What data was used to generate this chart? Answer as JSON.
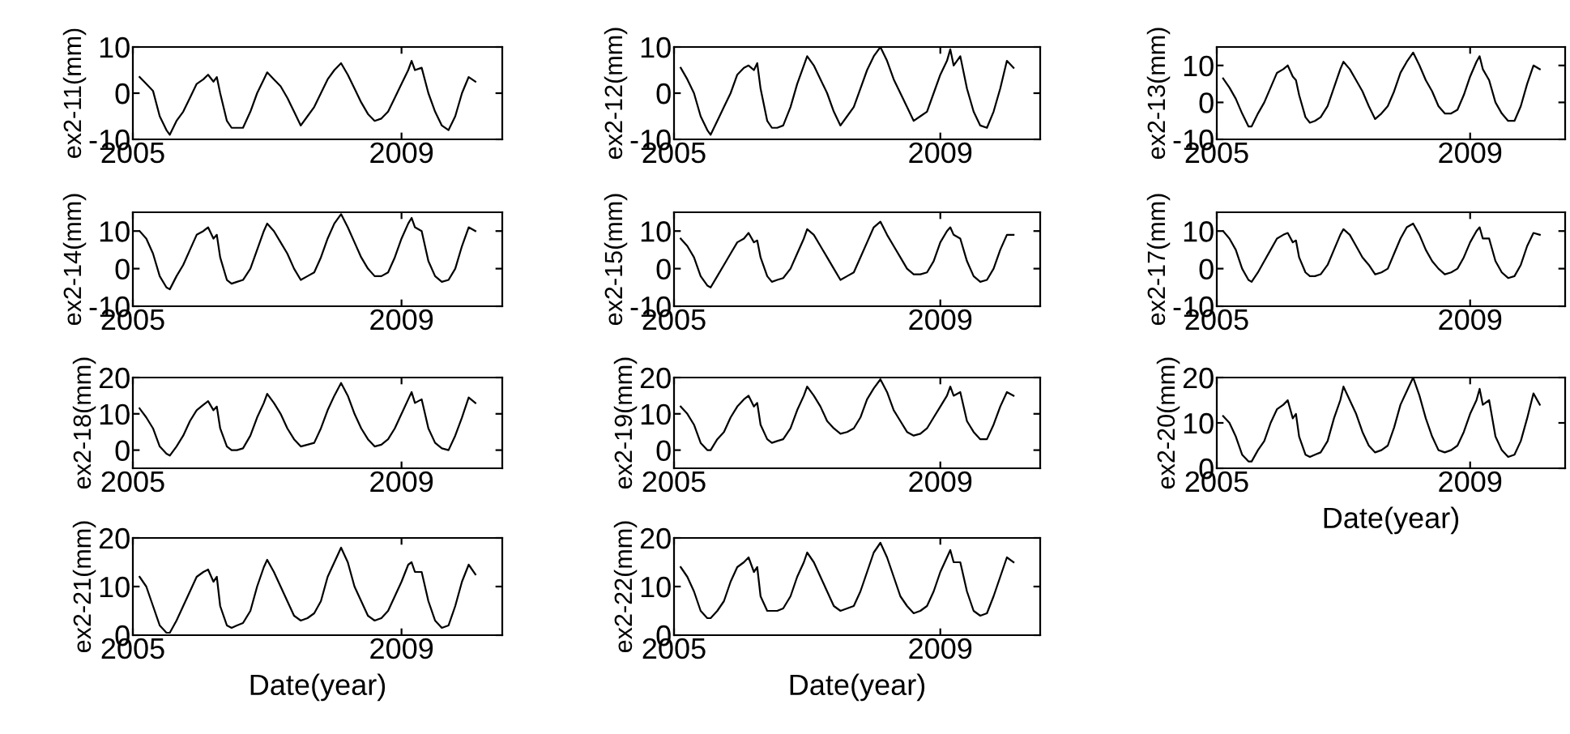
{
  "chart_data": [
    {
      "type": "line",
      "ylabel": "ex2-11(mm)",
      "color": "#000000",
      "xlim": [
        2005,
        2010.5
      ],
      "xticks": [
        2005,
        2009
      ],
      "ylim": [
        -10,
        10
      ],
      "yticks": [
        -10,
        0,
        10
      ],
      "x": [
        2005.1,
        2005.2,
        2005.3,
        2005.4,
        2005.5,
        2005.55,
        2005.65,
        2005.75,
        2005.85,
        2005.95,
        2006.05,
        2006.12,
        2006.2,
        2006.25,
        2006.3,
        2006.4,
        2006.47,
        2006.55,
        2006.64,
        2006.75,
        2006.85,
        2006.95,
        2007.0,
        2007.1,
        2007.2,
        2007.3,
        2007.4,
        2007.5,
        2007.6,
        2007.7,
        2007.8,
        2007.9,
        2008.0,
        2008.1,
        2008.2,
        2008.3,
        2008.4,
        2008.5,
        2008.6,
        2008.7,
        2008.8,
        2008.9,
        2009.0,
        2009.1,
        2009.15,
        2009.2,
        2009.3,
        2009.4,
        2009.5,
        2009.6,
        2009.7,
        2009.8,
        2009.9,
        2010.0,
        2010.1
      ],
      "values": [
        3.5,
        2,
        0.5,
        -5,
        -8,
        -9,
        -6,
        -4,
        -1,
        2,
        3,
        4,
        2.5,
        3.5,
        0,
        -6,
        -7.5,
        -7.5,
        -7.5,
        -4,
        0,
        3,
        4.5,
        3,
        1.5,
        -1,
        -4,
        -7,
        -5,
        -3,
        0,
        3,
        5,
        6.5,
        4,
        1,
        -2,
        -4.5,
        -6,
        -5.5,
        -4,
        -1,
        2,
        5,
        7,
        5,
        5.5,
        0,
        -4,
        -7,
        -8,
        -5,
        0,
        3.5,
        2.5
      ]
    },
    {
      "type": "line",
      "ylabel": "ex2-12(mm)",
      "color": "#000000",
      "xlim": [
        2005,
        2010.5
      ],
      "xticks": [
        2005,
        2009
      ],
      "ylim": [
        -10,
        10
      ],
      "yticks": [
        -10,
        0,
        10
      ],
      "x": [
        2005.1,
        2005.2,
        2005.3,
        2005.4,
        2005.5,
        2005.55,
        2005.65,
        2005.75,
        2005.85,
        2005.95,
        2006.05,
        2006.12,
        2006.2,
        2006.25,
        2006.3,
        2006.4,
        2006.47,
        2006.55,
        2006.64,
        2006.75,
        2006.85,
        2006.95,
        2007.0,
        2007.1,
        2007.2,
        2007.3,
        2007.4,
        2007.5,
        2007.6,
        2007.7,
        2007.8,
        2007.9,
        2008.0,
        2008.1,
        2008.2,
        2008.3,
        2008.4,
        2008.5,
        2008.6,
        2008.7,
        2008.8,
        2008.9,
        2009.0,
        2009.1,
        2009.15,
        2009.2,
        2009.3,
        2009.4,
        2009.5,
        2009.6,
        2009.7,
        2009.8,
        2009.9,
        2010.0,
        2010.1
      ],
      "values": [
        5.5,
        3,
        0,
        -5,
        -8,
        -9,
        -6,
        -3,
        0,
        4,
        5.5,
        6,
        5,
        6.5,
        1,
        -6,
        -7.5,
        -7.5,
        -7,
        -3,
        2,
        6,
        8,
        6,
        3,
        0,
        -4,
        -7,
        -5,
        -3,
        1,
        5,
        8,
        10,
        7,
        3,
        0,
        -3,
        -6,
        -5,
        -4,
        0,
        4,
        7,
        9.5,
        6,
        8,
        1,
        -4,
        -7,
        -7.5,
        -4,
        1,
        7,
        5.5
      ]
    },
    {
      "type": "line",
      "ylabel": "ex2-13(mm)",
      "color": "#000000",
      "xlim": [
        2005,
        2010.5
      ],
      "xticks": [
        2005,
        2009
      ],
      "ylim": [
        -10,
        15
      ],
      "yticks": [
        -10,
        0,
        10
      ],
      "x": [
        2005.1,
        2005.2,
        2005.3,
        2005.4,
        2005.5,
        2005.55,
        2005.65,
        2005.75,
        2005.85,
        2005.95,
        2006.05,
        2006.12,
        2006.2,
        2006.25,
        2006.3,
        2006.4,
        2006.47,
        2006.55,
        2006.64,
        2006.75,
        2006.85,
        2006.95,
        2007.0,
        2007.1,
        2007.2,
        2007.3,
        2007.4,
        2007.5,
        2007.6,
        2007.7,
        2007.8,
        2007.9,
        2008.0,
        2008.1,
        2008.2,
        2008.3,
        2008.4,
        2008.5,
        2008.6,
        2008.7,
        2008.8,
        2008.9,
        2009.0,
        2009.1,
        2009.15,
        2009.2,
        2009.3,
        2009.4,
        2009.5,
        2009.6,
        2009.7,
        2009.8,
        2009.9,
        2010.0,
        2010.1
      ],
      "values": [
        6.5,
        4,
        1,
        -3,
        -6.5,
        -6.5,
        -3,
        0,
        4,
        8,
        9,
        10,
        7,
        6,
        2,
        -4,
        -5.5,
        -5,
        -4,
        -1,
        4,
        9,
        11,
        9,
        6,
        3,
        -1,
        -4.5,
        -3,
        -1,
        3,
        8,
        11,
        13.5,
        10,
        6,
        3,
        -1,
        -3,
        -3,
        -2,
        2,
        7,
        11,
        12.5,
        9,
        6,
        0,
        -3,
        -5,
        -5,
        -1,
        5,
        10,
        9
      ]
    },
    {
      "type": "line",
      "ylabel": "ex2-14(mm)",
      "color": "#000000",
      "xlim": [
        2005,
        2010.5
      ],
      "xticks": [
        2005,
        2009
      ],
      "ylim": [
        -10,
        15
      ],
      "yticks": [
        -10,
        0,
        10
      ],
      "x": [
        2005.1,
        2005.2,
        2005.3,
        2005.4,
        2005.5,
        2005.55,
        2005.65,
        2005.75,
        2005.85,
        2005.95,
        2006.05,
        2006.12,
        2006.2,
        2006.25,
        2006.3,
        2006.4,
        2006.47,
        2006.55,
        2006.64,
        2006.75,
        2006.85,
        2006.95,
        2007.0,
        2007.1,
        2007.2,
        2007.3,
        2007.4,
        2007.5,
        2007.6,
        2007.7,
        2007.8,
        2007.9,
        2008.0,
        2008.1,
        2008.2,
        2008.3,
        2008.4,
        2008.5,
        2008.6,
        2008.7,
        2008.8,
        2008.9,
        2009.0,
        2009.1,
        2009.15,
        2009.2,
        2009.3,
        2009.4,
        2009.5,
        2009.6,
        2009.7,
        2009.8,
        2009.9,
        2010.0,
        2010.1
      ],
      "values": [
        10,
        8,
        4,
        -2,
        -5,
        -5.5,
        -2,
        1,
        5,
        9,
        10,
        11,
        8,
        9,
        3,
        -3,
        -4,
        -3.5,
        -3,
        0,
        5,
        10,
        12,
        10,
        7,
        4,
        0,
        -3,
        -2,
        -1,
        3,
        8,
        12,
        14.5,
        11,
        7,
        3,
        0,
        -2,
        -2,
        -1,
        3,
        8,
        12,
        13.5,
        11,
        10,
        2,
        -2,
        -3.5,
        -3,
        0,
        6,
        11,
        10
      ]
    },
    {
      "type": "line",
      "ylabel": "ex2-15(mm)",
      "color": "#000000",
      "xlim": [
        2005,
        2010.5
      ],
      "xticks": [
        2005,
        2009
      ],
      "ylim": [
        -10,
        15
      ],
      "yticks": [
        -10,
        0,
        10
      ],
      "x": [
        2005.1,
        2005.2,
        2005.3,
        2005.4,
        2005.5,
        2005.55,
        2005.65,
        2005.75,
        2005.85,
        2005.95,
        2006.05,
        2006.12,
        2006.2,
        2006.25,
        2006.3,
        2006.4,
        2006.47,
        2006.55,
        2006.64,
        2006.75,
        2006.85,
        2006.95,
        2007.0,
        2007.1,
        2007.2,
        2007.3,
        2007.4,
        2007.5,
        2007.6,
        2007.7,
        2007.8,
        2007.9,
        2008.0,
        2008.1,
        2008.2,
        2008.3,
        2008.4,
        2008.5,
        2008.6,
        2008.7,
        2008.8,
        2008.9,
        2009.0,
        2009.1,
        2009.15,
        2009.2,
        2009.3,
        2009.4,
        2009.5,
        2009.6,
        2009.7,
        2009.8,
        2009.9,
        2010.0,
        2010.1
      ],
      "values": [
        8,
        6,
        3,
        -2,
        -4.5,
        -5,
        -2,
        1,
        4,
        7,
        8,
        9.5,
        7,
        7.5,
        3,
        -2,
        -3.5,
        -3,
        -2.5,
        0,
        4,
        8,
        10.5,
        9,
        6,
        3,
        0,
        -3,
        -2,
        -1,
        3,
        7,
        11,
        12.5,
        9,
        6,
        3,
        0,
        -1.5,
        -1.5,
        -1,
        2,
        7,
        10,
        11,
        9,
        8,
        2,
        -2,
        -3.5,
        -3,
        0,
        5,
        9,
        9
      ]
    },
    {
      "type": "line",
      "ylabel": "ex2-17(mm)",
      "color": "#000000",
      "xlim": [
        2005,
        2010.5
      ],
      "xticks": [
        2005,
        2009
      ],
      "ylim": [
        -10,
        15
      ],
      "yticks": [
        -10,
        0,
        10
      ],
      "x": [
        2005.1,
        2005.2,
        2005.3,
        2005.4,
        2005.5,
        2005.55,
        2005.65,
        2005.75,
        2005.85,
        2005.95,
        2006.05,
        2006.12,
        2006.2,
        2006.25,
        2006.3,
        2006.4,
        2006.47,
        2006.55,
        2006.64,
        2006.75,
        2006.85,
        2006.95,
        2007.0,
        2007.1,
        2007.2,
        2007.3,
        2007.4,
        2007.5,
        2007.6,
        2007.7,
        2007.8,
        2007.9,
        2008.0,
        2008.1,
        2008.2,
        2008.3,
        2008.4,
        2008.5,
        2008.6,
        2008.7,
        2008.8,
        2008.9,
        2009.0,
        2009.1,
        2009.15,
        2009.2,
        2009.3,
        2009.4,
        2009.5,
        2009.6,
        2009.7,
        2009.8,
        2009.9,
        2010.0,
        2010.1
      ],
      "values": [
        10,
        8,
        5,
        0,
        -3,
        -3.5,
        -1,
        2,
        5,
        8,
        9,
        9.5,
        7,
        7.5,
        3,
        -1,
        -2,
        -2,
        -1.5,
        1,
        5,
        9,
        10.5,
        9,
        6,
        3,
        1,
        -1.5,
        -1,
        0,
        4,
        8,
        11,
        12,
        9,
        5,
        2,
        0,
        -1.5,
        -1,
        0,
        3,
        7,
        10,
        11,
        8,
        8,
        2,
        -1,
        -2.5,
        -2,
        1,
        6,
        9.5,
        9
      ]
    },
    {
      "type": "line",
      "ylabel": "ex2-18(mm)",
      "color": "#000000",
      "xlim": [
        2005,
        2010.5
      ],
      "xticks": [
        2005,
        2009
      ],
      "ylim": [
        -5,
        20
      ],
      "yticks": [
        0,
        10,
        20
      ],
      "x": [
        2005.1,
        2005.2,
        2005.3,
        2005.4,
        2005.5,
        2005.55,
        2005.65,
        2005.75,
        2005.85,
        2005.95,
        2006.05,
        2006.12,
        2006.2,
        2006.25,
        2006.3,
        2006.4,
        2006.47,
        2006.55,
        2006.64,
        2006.75,
        2006.85,
        2006.95,
        2007.0,
        2007.1,
        2007.2,
        2007.3,
        2007.4,
        2007.5,
        2007.6,
        2007.7,
        2007.8,
        2007.9,
        2008.0,
        2008.1,
        2008.2,
        2008.3,
        2008.4,
        2008.5,
        2008.6,
        2008.7,
        2008.8,
        2008.9,
        2009.0,
        2009.1,
        2009.15,
        2009.2,
        2009.3,
        2009.4,
        2009.5,
        2009.6,
        2009.7,
        2009.8,
        2009.9,
        2010.0,
        2010.1
      ],
      "values": [
        11.5,
        9,
        6,
        1,
        -1,
        -1.5,
        1,
        4,
        8,
        11,
        12.5,
        13.5,
        11,
        12,
        6,
        1,
        0,
        0,
        0.5,
        4,
        9,
        13,
        15.5,
        13,
        10,
        6,
        3,
        1,
        1.5,
        2,
        6,
        11,
        15,
        18.5,
        15,
        10,
        6,
        3,
        1,
        1.5,
        3,
        6,
        10,
        14,
        16,
        13,
        14,
        6,
        2,
        0.5,
        0,
        4,
        9,
        14.5,
        13
      ]
    },
    {
      "type": "line",
      "ylabel": "ex2-19(mm)",
      "color": "#000000",
      "xlim": [
        2005,
        2010.5
      ],
      "xticks": [
        2005,
        2009
      ],
      "ylim": [
        -5,
        20
      ],
      "yticks": [
        0,
        10,
        20
      ],
      "x": [
        2005.1,
        2005.2,
        2005.3,
        2005.4,
        2005.5,
        2005.55,
        2005.65,
        2005.75,
        2005.85,
        2005.95,
        2006.05,
        2006.12,
        2006.2,
        2006.25,
        2006.3,
        2006.4,
        2006.47,
        2006.55,
        2006.64,
        2006.75,
        2006.85,
        2006.95,
        2007.0,
        2007.1,
        2007.2,
        2007.3,
        2007.4,
        2007.5,
        2007.6,
        2007.7,
        2007.8,
        2007.9,
        2008.0,
        2008.1,
        2008.2,
        2008.3,
        2008.4,
        2008.5,
        2008.6,
        2008.7,
        2008.8,
        2008.9,
        2009.0,
        2009.1,
        2009.15,
        2009.2,
        2009.3,
        2009.4,
        2009.5,
        2009.6,
        2009.7,
        2009.8,
        2009.9,
        2010.0,
        2010.1
      ],
      "values": [
        12,
        10,
        7,
        2,
        0,
        0,
        3,
        5,
        9,
        12,
        14,
        15,
        12,
        13,
        7,
        3,
        2,
        2.5,
        3,
        6,
        11,
        15,
        17.5,
        15,
        12,
        8,
        6,
        4.5,
        5,
        6,
        9,
        14,
        17,
        19.5,
        16,
        11,
        8,
        5,
        4,
        4.5,
        6,
        9,
        12,
        15,
        17.5,
        15,
        16,
        8,
        5,
        3,
        3,
        7,
        12,
        16,
        15
      ]
    },
    {
      "type": "line",
      "ylabel": "ex2-20(mm)",
      "xlabel": "Date(year)",
      "color": "#000000",
      "xlim": [
        2005,
        2010.5
      ],
      "xticks": [
        2005,
        2009
      ],
      "ylim": [
        0,
        20
      ],
      "yticks": [
        0,
        10,
        20
      ],
      "x": [
        2005.1,
        2005.2,
        2005.3,
        2005.4,
        2005.5,
        2005.55,
        2005.65,
        2005.75,
        2005.85,
        2005.95,
        2006.05,
        2006.12,
        2006.2,
        2006.25,
        2006.3,
        2006.4,
        2006.47,
        2006.55,
        2006.64,
        2006.75,
        2006.85,
        2006.95,
        2007.0,
        2007.1,
        2007.2,
        2007.3,
        2007.4,
        2007.5,
        2007.6,
        2007.7,
        2007.8,
        2007.9,
        2008.0,
        2008.1,
        2008.2,
        2008.3,
        2008.4,
        2008.5,
        2008.6,
        2008.7,
        2008.8,
        2008.9,
        2009.0,
        2009.1,
        2009.15,
        2009.2,
        2009.3,
        2009.4,
        2009.5,
        2009.6,
        2009.7,
        2009.8,
        2009.9,
        2010.0,
        2010.1
      ],
      "values": [
        11.5,
        10,
        7,
        3,
        1.5,
        1.5,
        4,
        6,
        10,
        13,
        14,
        15,
        11,
        12,
        7,
        3,
        2.5,
        3,
        3.5,
        6,
        11,
        15,
        18,
        15,
        12,
        8,
        5,
        3.5,
        4,
        5,
        9,
        14,
        17,
        20,
        16,
        11,
        7,
        4,
        3.5,
        4,
        5,
        8,
        12,
        15,
        17.5,
        14,
        15,
        7,
        4,
        2.5,
        3,
        6,
        11,
        16.5,
        14
      ]
    },
    {
      "type": "line",
      "ylabel": "ex2-21(mm)",
      "xlabel": "Date(year)",
      "color": "#000000",
      "xlim": [
        2005,
        2010.5
      ],
      "xticks": [
        2005,
        2009
      ],
      "ylim": [
        0,
        20
      ],
      "yticks": [
        0,
        10,
        20
      ],
      "x": [
        2005.1,
        2005.2,
        2005.3,
        2005.4,
        2005.5,
        2005.55,
        2005.65,
        2005.75,
        2005.85,
        2005.95,
        2006.05,
        2006.12,
        2006.2,
        2006.25,
        2006.3,
        2006.4,
        2006.47,
        2006.55,
        2006.64,
        2006.75,
        2006.85,
        2006.95,
        2007.0,
        2007.1,
        2007.2,
        2007.3,
        2007.4,
        2007.5,
        2007.6,
        2007.7,
        2007.8,
        2007.9,
        2008.0,
        2008.1,
        2008.2,
        2008.3,
        2008.4,
        2008.5,
        2008.6,
        2008.7,
        2008.8,
        2008.9,
        2009.0,
        2009.1,
        2009.15,
        2009.2,
        2009.3,
        2009.4,
        2009.5,
        2009.6,
        2009.7,
        2009.8,
        2009.9,
        2010.0,
        2010.1
      ],
      "values": [
        12,
        10,
        6,
        2,
        0.5,
        0.5,
        3,
        6,
        9,
        12,
        13,
        13.5,
        11,
        12,
        6,
        2,
        1.5,
        2,
        2.5,
        5,
        10,
        14,
        15.5,
        13,
        10,
        7,
        4,
        3,
        3.5,
        4.5,
        7,
        12,
        15,
        18,
        15,
        10,
        7,
        4,
        3,
        3.5,
        5,
        8,
        11,
        14.5,
        15,
        13,
        13,
        7,
        3,
        1.5,
        2,
        6,
        11,
        14.5,
        12.5
      ]
    },
    {
      "type": "line",
      "ylabel": "ex2-22(mm)",
      "xlabel": "Date(year)",
      "color": "#000000",
      "xlim": [
        2005,
        2010.5
      ],
      "xticks": [
        2005,
        2009
      ],
      "ylim": [
        0,
        20
      ],
      "yticks": [
        0,
        10,
        20
      ],
      "x": [
        2005.1,
        2005.2,
        2005.3,
        2005.4,
        2005.5,
        2005.55,
        2005.65,
        2005.75,
        2005.85,
        2005.95,
        2006.05,
        2006.12,
        2006.2,
        2006.25,
        2006.3,
        2006.4,
        2006.47,
        2006.55,
        2006.64,
        2006.75,
        2006.85,
        2006.95,
        2007.0,
        2007.1,
        2007.2,
        2007.3,
        2007.4,
        2007.5,
        2007.6,
        2007.7,
        2007.8,
        2007.9,
        2008.0,
        2008.1,
        2008.2,
        2008.3,
        2008.4,
        2008.5,
        2008.6,
        2008.7,
        2008.8,
        2008.9,
        2009.0,
        2009.1,
        2009.15,
        2009.2,
        2009.3,
        2009.4,
        2009.5,
        2009.6,
        2009.7,
        2009.8,
        2009.9,
        2010.0,
        2010.1
      ],
      "values": [
        14,
        12,
        9,
        5,
        3.5,
        3.5,
        5,
        7,
        11,
        14,
        15,
        16,
        13,
        14,
        8,
        5,
        5,
        5,
        5.5,
        8,
        12,
        15,
        17,
        15,
        12,
        9,
        6,
        5,
        5.5,
        6,
        9,
        13,
        17,
        19,
        16,
        12,
        8,
        6,
        4.5,
        5,
        6,
        9,
        13,
        16,
        17.5,
        15,
        15,
        9,
        5,
        4,
        4.5,
        8,
        12,
        16,
        15
      ]
    }
  ]
}
